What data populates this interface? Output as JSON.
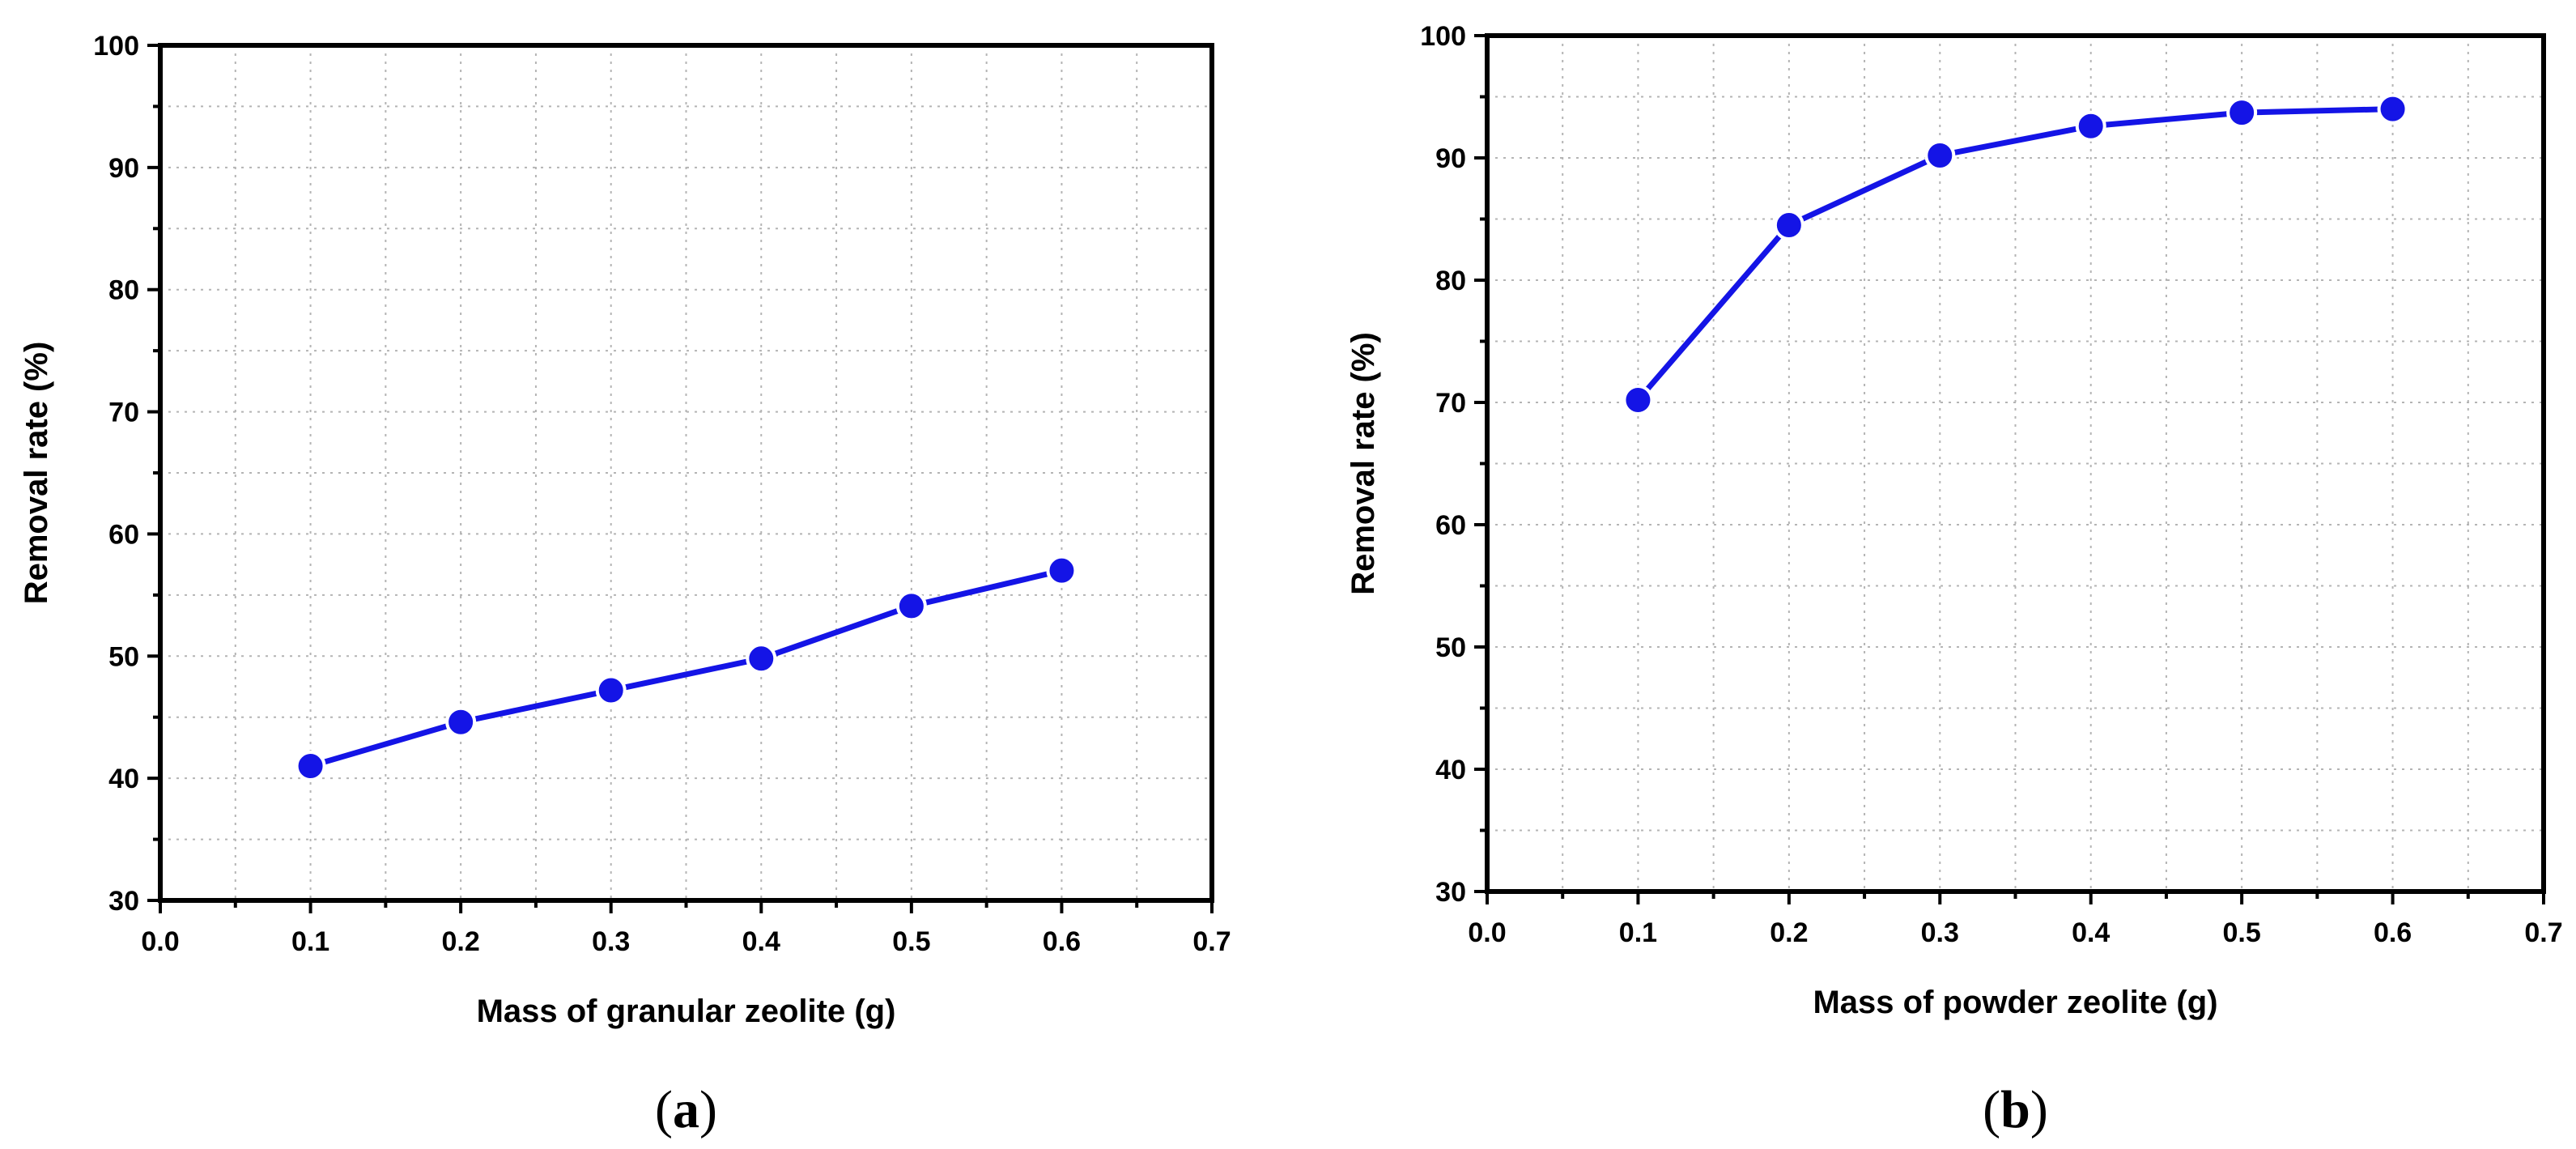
{
  "chart_data": [
    {
      "type": "line",
      "panel_label": "a",
      "xlabel": "Mass of granular zeolite (g)",
      "ylabel": "Removal rate (%)",
      "xlim": [
        0.0,
        0.7
      ],
      "ylim": [
        30,
        100
      ],
      "xticks": [
        0.0,
        0.1,
        0.2,
        0.3,
        0.4,
        0.5,
        0.6,
        0.7
      ],
      "xtick_labels": [
        "0.0",
        "0.1",
        "0.2",
        "0.3",
        "0.4",
        "0.5",
        "0.6",
        "0.7"
      ],
      "yticks": [
        30,
        40,
        50,
        60,
        70,
        80,
        90,
        100
      ],
      "ytick_labels": [
        "30",
        "40",
        "50",
        "60",
        "70",
        "80",
        "90",
        "100"
      ],
      "grid": true,
      "color": "#1414e6",
      "x": [
        0.1,
        0.2,
        0.3,
        0.4,
        0.5,
        0.6
      ],
      "y": [
        41.0,
        44.6,
        47.2,
        49.8,
        54.1,
        57.0
      ]
    },
    {
      "type": "line",
      "panel_label": "b",
      "xlabel": "Mass of powder zeolite (g)",
      "ylabel": "Removal rate (%)",
      "xlim": [
        0.0,
        0.7
      ],
      "ylim": [
        30,
        100
      ],
      "xticks": [
        0.0,
        0.1,
        0.2,
        0.3,
        0.4,
        0.5,
        0.6,
        0.7
      ],
      "xtick_labels": [
        "0.0",
        "0.1",
        "0.2",
        "0.3",
        "0.4",
        "0.5",
        "0.6",
        "0.7"
      ],
      "yticks": [
        30,
        40,
        50,
        60,
        70,
        80,
        90,
        100
      ],
      "ytick_labels": [
        "30",
        "40",
        "50",
        "60",
        "70",
        "80",
        "90",
        "100"
      ],
      "grid": true,
      "color": "#1414e6",
      "x": [
        0.1,
        0.2,
        0.3,
        0.4,
        0.5,
        0.6
      ],
      "y": [
        70.2,
        84.5,
        90.2,
        92.6,
        93.7,
        94.0
      ]
    }
  ]
}
